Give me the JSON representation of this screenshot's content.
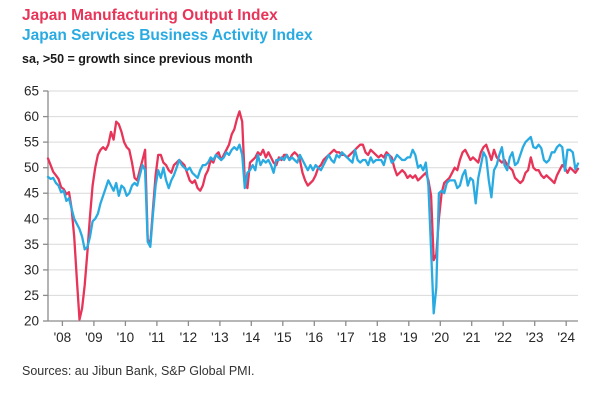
{
  "header": {
    "title_line1": "Japan Manufacturing Output Index",
    "title_line2": "Japan Services Business Activity Index",
    "subtitle": "sa, >50 = growth since previous month"
  },
  "footer": {
    "source": "Sources: au Jibun Bank, S&P Global PMI."
  },
  "colors": {
    "manufacturing": "#e73458",
    "services": "#29abe2",
    "grid": "#d9d9d9",
    "axis": "#8c8c8c",
    "text": "#262626"
  },
  "chart_data": {
    "type": "line",
    "title": "Japan Manufacturing Output Index vs Japan Services Business Activity Index",
    "subtitle": "sa, >50 = growth since previous month",
    "x_unit": "monthly",
    "x_start": "2008-01",
    "x_end": "2024-11",
    "x_tick_labels": [
      "'08",
      "'09",
      "'10",
      "'11",
      "'12",
      "'13",
      "'14",
      "'15",
      "'16",
      "'17",
      "'18",
      "'19",
      "'20",
      "'21",
      "'22",
      "'23",
      "'24"
    ],
    "ylim": [
      20,
      65
    ],
    "y_ticks": [
      20,
      25,
      30,
      35,
      40,
      45,
      50,
      55,
      60,
      65
    ],
    "grid": "horizontal",
    "legend_position": "titles-act-as-legend",
    "series": [
      {
        "name": "Japan Manufacturing Output Index",
        "color": "#e73458",
        "values": [
          51.8,
          50.5,
          49.2,
          48.5,
          47.8,
          46.2,
          45.8,
          44.8,
          45.2,
          42.0,
          36.5,
          28.0,
          20.3,
          22.5,
          27.0,
          33.5,
          40.5,
          46.5,
          50.0,
          52.5,
          53.5,
          54.0,
          53.5,
          54.5,
          57.0,
          55.5,
          59.0,
          58.5,
          57.0,
          55.0,
          54.0,
          53.5,
          51.0,
          48.0,
          47.5,
          49.5,
          51.5,
          53.5,
          36.0,
          35.0,
          42.0,
          48.5,
          52.5,
          52.5,
          51.0,
          50.5,
          49.5,
          49.0,
          50.5,
          51.0,
          51.5,
          51.0,
          50.5,
          49.0,
          47.5,
          47.0,
          47.5,
          46.0,
          45.5,
          46.5,
          48.5,
          49.5,
          51.5,
          51.0,
          52.5,
          53.0,
          51.5,
          52.5,
          53.5,
          54.5,
          56.5,
          57.5,
          59.5,
          61.0,
          59.0,
          47.5,
          46.0,
          51.0,
          51.5,
          52.0,
          53.0,
          52.5,
          53.5,
          52.0,
          53.0,
          52.0,
          51.0,
          50.5,
          52.0,
          51.5,
          52.5,
          52.5,
          51.5,
          52.5,
          53.0,
          52.5,
          51.5,
          49.0,
          47.5,
          46.5,
          47.0,
          47.5,
          48.5,
          50.0,
          50.5,
          51.5,
          52.0,
          52.5,
          53.0,
          53.5,
          53.0,
          53.0,
          52.5,
          52.5,
          52.0,
          52.5,
          53.0,
          53.5,
          54.0,
          54.5,
          54.5,
          53.0,
          52.5,
          53.5,
          53.0,
          52.5,
          52.0,
          52.5,
          52.0,
          53.0,
          52.5,
          52.0,
          50.0,
          48.5,
          49.0,
          49.5,
          49.0,
          48.0,
          48.5,
          48.0,
          48.5,
          47.5,
          48.0,
          48.5,
          49.0,
          47.5,
          44.5,
          31.9,
          33.0,
          40.0,
          45.0,
          47.0,
          47.5,
          48.0,
          49.0,
          50.0,
          49.5,
          51.5,
          53.0,
          53.5,
          52.5,
          51.5,
          52.0,
          51.5,
          51.0,
          53.0,
          54.0,
          54.5,
          53.0,
          51.5,
          53.5,
          52.0,
          51.5,
          51.0,
          51.5,
          50.5,
          50.0,
          49.5,
          48.0,
          47.5,
          47.0,
          47.5,
          49.0,
          49.5,
          52.0,
          50.0,
          49.5,
          49.5,
          48.5,
          48.0,
          48.5,
          48.0,
          47.5,
          47.0,
          48.5,
          49.5,
          50.5,
          50.0,
          49.0,
          50.0,
          49.5,
          49.0,
          49.8
        ]
      },
      {
        "name": "Japan Services Business Activity Index",
        "color": "#29abe2",
        "values": [
          48.2,
          47.8,
          48.0,
          47.0,
          46.5,
          45.2,
          45.5,
          43.5,
          44.0,
          42.0,
          40.0,
          39.0,
          38.0,
          36.5,
          34.0,
          34.5,
          36.5,
          39.5,
          40.0,
          41.0,
          43.0,
          44.5,
          46.0,
          47.5,
          46.5,
          45.5,
          47.0,
          44.5,
          46.5,
          46.0,
          44.5,
          45.0,
          46.5,
          47.0,
          46.5,
          48.5,
          50.5,
          49.5,
          35.5,
          34.5,
          41.0,
          46.5,
          49.5,
          48.0,
          50.0,
          47.5,
          46.0,
          47.5,
          48.5,
          50.0,
          51.5,
          50.5,
          50.0,
          49.5,
          50.0,
          49.0,
          48.5,
          48.0,
          49.5,
          50.5,
          50.5,
          51.0,
          52.0,
          51.5,
          52.5,
          52.0,
          51.5,
          52.0,
          53.0,
          52.5,
          53.5,
          54.0,
          53.5,
          54.5,
          52.5,
          46.0,
          49.0,
          49.5,
          50.5,
          49.5,
          52.5,
          50.5,
          51.5,
          51.0,
          51.5,
          50.5,
          49.0,
          51.5,
          51.5,
          52.0,
          51.5,
          52.5,
          51.5,
          52.0,
          51.5,
          51.0,
          52.5,
          51.5,
          50.5,
          49.5,
          50.5,
          49.5,
          50.5,
          50.0,
          49.5,
          50.5,
          51.5,
          52.5,
          51.5,
          51.0,
          52.5,
          52.0,
          53.0,
          52.5,
          52.0,
          51.5,
          51.0,
          53.5,
          51.5,
          51.0,
          51.5,
          51.5,
          50.5,
          52.0,
          51.0,
          51.5,
          51.5,
          51.5,
          50.5,
          52.5,
          52.5,
          51.0,
          51.5,
          52.5,
          52.0,
          51.5,
          51.5,
          52.0,
          52.0,
          53.5,
          52.5,
          50.0,
          50.5,
          49.5,
          51.0,
          46.5,
          33.8,
          21.5,
          26.5,
          45.0,
          45.5,
          45.0,
          47.0,
          47.5,
          47.5,
          47.5,
          46.0,
          46.5,
          48.5,
          49.5,
          46.5,
          48.0,
          47.5,
          43.0,
          48.0,
          50.5,
          53.0,
          52.0,
          47.5,
          44.2,
          49.5,
          50.5,
          52.5,
          54.0,
          50.5,
          49.5,
          52.0,
          53.0,
          50.5,
          51.0,
          52.5,
          54.0,
          55.0,
          55.5,
          56.0,
          54.0,
          53.8,
          54.5,
          53.8,
          51.5,
          51.0,
          51.5,
          53.0,
          53.0,
          54.0,
          54.5,
          54.0,
          49.4,
          53.5,
          53.5,
          53.0,
          49.7,
          50.8
        ]
      }
    ]
  }
}
